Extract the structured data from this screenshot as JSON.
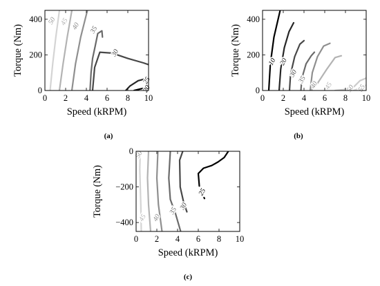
{
  "chart_data": [
    {
      "type": "line",
      "caption": "(a)",
      "xlabel": "Speed (kRPM)",
      "ylabel": "Torque (Nm)",
      "xlim": [
        0,
        10
      ],
      "ylim": [
        0,
        450
      ],
      "xticks": [
        "0",
        "2",
        "4",
        "6",
        "8",
        "10"
      ],
      "yticks": [
        "0",
        "200",
        "400"
      ],
      "series": [
        {
          "name": "50",
          "color": "#d4d4d4",
          "x": [
            0.5,
            0.75,
            1.05,
            1.4
          ],
          "y": [
            0,
            150,
            300,
            450
          ],
          "label_at": [
            0.7,
            390
          ]
        },
        {
          "name": "45",
          "color": "#b3b3b3",
          "x": [
            1.4,
            1.75,
            2.15,
            2.6
          ],
          "y": [
            0,
            150,
            300,
            450
          ],
          "label_at": [
            1.9,
            385
          ]
        },
        {
          "name": "40",
          "color": "#8f8f8f",
          "x": [
            2.6,
            2.95,
            3.45,
            4.1
          ],
          "y": [
            0,
            150,
            300,
            450
          ],
          "label_at": [
            3.0,
            360
          ]
        },
        {
          "name": "35",
          "color": "#6a6a6a",
          "x": [
            4.35,
            4.45,
            4.6,
            4.85,
            5.1,
            5.5,
            5.55
          ],
          "y": [
            0,
            100,
            180,
            250,
            320,
            335,
            300
          ],
          "label_at": [
            4.75,
            340
          ]
        },
        {
          "name": "30",
          "color": "#474747",
          "x": [
            4.6,
            4.8,
            5.3,
            6.5,
            8.0,
            9.5,
            10.0
          ],
          "y": [
            0,
            130,
            215,
            210,
            180,
            155,
            145
          ],
          "label_at": [
            6.8,
            210
          ]
        },
        {
          "name": "25",
          "color": "#262626",
          "x": [
            7.8,
            8.2,
            9.0,
            10.0
          ],
          "y": [
            0,
            25,
            55,
            70
          ],
          "label_at": [
            9.85,
            55
          ]
        },
        {
          "name": "20",
          "color": "#000000",
          "x": [
            8.6,
            9.3,
            10.0
          ],
          "y": [
            0,
            10,
            18
          ],
          "label_at": [
            9.85,
            8
          ]
        }
      ]
    },
    {
      "type": "line",
      "caption": "(b)",
      "xlabel": "Speed (kRPM)",
      "ylabel": "Torque (Nm)",
      "xlim": [
        0,
        10
      ],
      "ylim": [
        0,
        450
      ],
      "xticks": [
        "0",
        "2",
        "4",
        "6",
        "8",
        "10"
      ],
      "yticks": [
        "0",
        "200",
        "400"
      ],
      "series": [
        {
          "name": "10",
          "color": "#000000",
          "x": [
            0.6,
            0.75,
            1.1,
            1.7
          ],
          "y": [
            0,
            150,
            300,
            450
          ],
          "label_at": [
            0.95,
            160
          ]
        },
        {
          "name": "20",
          "color": "#262626",
          "x": [
            1.6,
            1.75,
            2.1,
            2.55,
            3.0
          ],
          "y": [
            0,
            120,
            240,
            330,
            380
          ],
          "label_at": [
            2.05,
            160
          ]
        },
        {
          "name": "30",
          "color": "#474747",
          "x": [
            2.6,
            2.7,
            3.1,
            3.6,
            4.0
          ],
          "y": [
            0,
            90,
            190,
            260,
            280
          ],
          "label_at": [
            3.0,
            95
          ]
        },
        {
          "name": "35",
          "color": "#6a6a6a",
          "x": [
            3.7,
            3.8,
            4.2,
            4.7,
            5.0
          ],
          "y": [
            0,
            70,
            150,
            195,
            215
          ],
          "label_at": [
            3.85,
            60
          ]
        },
        {
          "name": "40",
          "color": "#8f8f8f",
          "x": [
            4.6,
            4.8,
            5.3,
            5.9,
            6.5
          ],
          "y": [
            0,
            100,
            190,
            250,
            265
          ],
          "label_at": [
            5.0,
            30
          ]
        },
        {
          "name": "45",
          "color": "#b3b3b3",
          "x": [
            4.7,
            5.3,
            6.2,
            7.0,
            7.6
          ],
          "y": [
            0,
            40,
            120,
            185,
            195
          ],
          "label_at": [
            6.4,
            25
          ]
        },
        {
          "name": "50",
          "color": "#cccccc",
          "x": [
            7.0,
            7.8,
            8.8,
            9.4,
            10.0
          ],
          "y": [
            0,
            5,
            20,
            55,
            70
          ],
          "label_at": [
            8.5,
            10
          ]
        },
        {
          "name": "55",
          "color": "#dedede",
          "x": [
            8.8,
            9.4,
            10.0
          ],
          "y": [
            0,
            15,
            30
          ],
          "label_at": [
            9.6,
            12
          ]
        }
      ]
    },
    {
      "type": "line",
      "caption": "(c)",
      "xlabel": "Speed (kRPM)",
      "ylabel": "Torque (Nm)",
      "xlim": [
        0,
        10
      ],
      "ylim": [
        -450,
        0
      ],
      "xticks": [
        "0",
        "2",
        "4",
        "6",
        "8",
        "10"
      ],
      "yticks": [
        "0",
        "−200",
        "−400"
      ],
      "series": [
        {
          "name": "50",
          "color": "#d4d4d4",
          "x": [
            0.4,
            0.35,
            0.45,
            0.5
          ],
          "y": [
            0,
            -100,
            -300,
            -450
          ],
          "label_at": [
            0.3,
            -20
          ]
        },
        {
          "name": "45",
          "color": "#b3b3b3",
          "x": [
            1.2,
            1.1,
            1.2,
            1.4
          ],
          "y": [
            0,
            -150,
            -300,
            -450
          ],
          "label_at": [
            0.65,
            -375
          ]
        },
        {
          "name": "40",
          "color": "#8f8f8f",
          "x": [
            2.1,
            2.0,
            2.15,
            2.5
          ],
          "y": [
            0,
            -150,
            -300,
            -450
          ],
          "label_at": [
            2.0,
            -375
          ]
        },
        {
          "name": "35",
          "color": "#6a6a6a",
          "x": [
            3.3,
            3.15,
            3.3,
            3.8,
            4.3
          ],
          "y": [
            0,
            -150,
            -270,
            -350,
            -450
          ],
          "label_at": [
            3.6,
            -335
          ]
        },
        {
          "name": "30",
          "color": "#474747",
          "x": [
            4.5,
            4.2,
            4.25,
            4.6,
            4.9
          ],
          "y": [
            0,
            -50,
            -200,
            -290,
            -340
          ],
          "label_at": [
            4.6,
            -310
          ]
        },
        {
          "name": "25",
          "color": "#000000",
          "x": [
            6.1,
            6.0,
            6.5,
            7.3,
            7.9,
            8.5,
            8.9
          ],
          "y": [
            -195,
            -125,
            -95,
            -80,
            -60,
            -35,
            0
          ],
          "label_at": [
            6.4,
            -230
          ]
        },
        {
          "name": "",
          "color": "#000000",
          "x": [
            6.55,
            6.6
          ],
          "y": [
            -260,
            -265
          ]
        }
      ]
    }
  ]
}
